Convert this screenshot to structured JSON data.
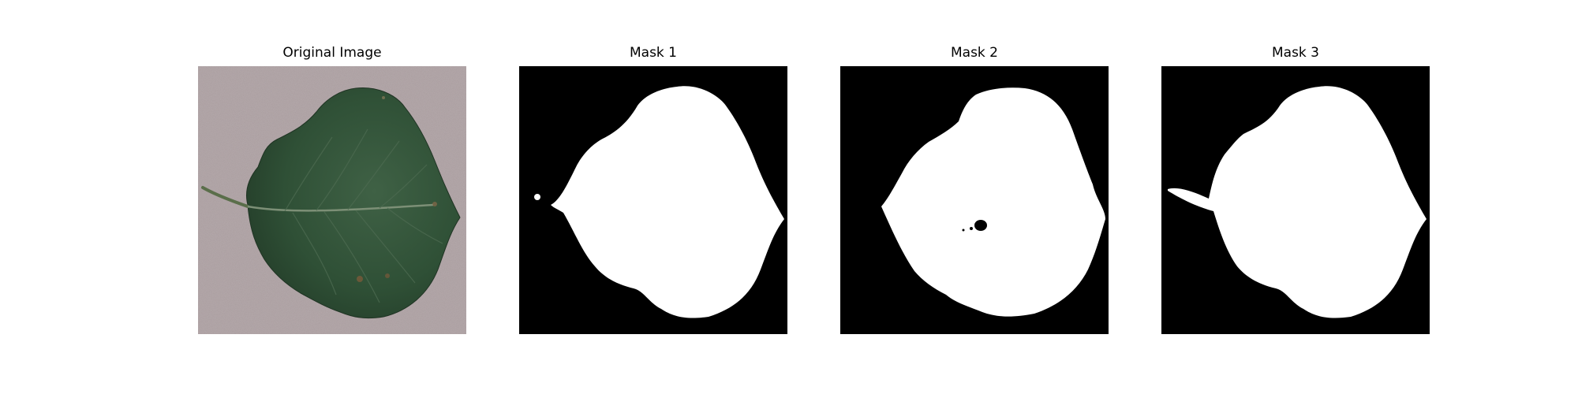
{
  "panels": [
    {
      "title": "Original Image"
    },
    {
      "title": "Mask 1"
    },
    {
      "title": "Mask 2"
    },
    {
      "title": "Mask 3"
    }
  ],
  "colors": {
    "background_photo": "#a89b9d",
    "leaf": "#2f4e33",
    "mask_fill": "#ffffff",
    "mask_background": "#000000"
  }
}
